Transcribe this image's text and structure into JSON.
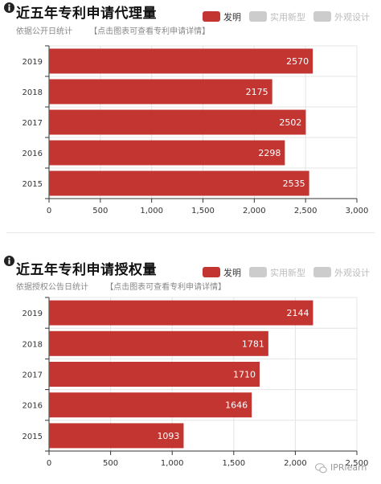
{
  "colors": {
    "bar": "#c23531",
    "legend_inactive": "#cccccc",
    "grid": "#e4e4e4",
    "axis": "#333333"
  },
  "watermark": {
    "text": "IPRlearn",
    "icon": "wechat-icon"
  },
  "charts": [
    {
      "title": "近五年专利申请代理量",
      "subtitle": "依据公开日统计",
      "hint": "【点击图表可查看专利申请详情】",
      "legend": [
        "发明",
        "实用新型",
        "外观设计"
      ]
    },
    {
      "title": "近五年专利申请授权量",
      "subtitle": "依据授权公告日统计",
      "hint": "【点击图表可查看专利申请详情】",
      "legend": [
        "发明",
        "实用新型",
        "外观设计"
      ]
    }
  ],
  "chart_data": [
    {
      "type": "bar",
      "orientation": "horizontal",
      "title": "近五年专利申请代理量",
      "categories": [
        "2019",
        "2018",
        "2017",
        "2016",
        "2015"
      ],
      "series": [
        {
          "name": "发明",
          "values": [
            2570,
            2175,
            2502,
            2298,
            2535
          ]
        }
      ],
      "legend": [
        "发明",
        "实用新型",
        "外观设计"
      ],
      "legend_active": [
        true,
        false,
        false
      ],
      "xlim": [
        0,
        3000
      ],
      "xticks": [
        0,
        500,
        1000,
        1500,
        2000,
        2500,
        3000
      ],
      "xtick_labels": [
        "0",
        "500",
        "1,000",
        "1,500",
        "2,000",
        "2,500",
        "3,000"
      ],
      "grid": true,
      "legend_position": "top-right"
    },
    {
      "type": "bar",
      "orientation": "horizontal",
      "title": "近五年专利申请授权量",
      "categories": [
        "2019",
        "2018",
        "2017",
        "2016",
        "2015"
      ],
      "series": [
        {
          "name": "发明",
          "values": [
            2144,
            1781,
            1710,
            1646,
            1093
          ]
        }
      ],
      "legend": [
        "发明",
        "实用新型",
        "外观设计"
      ],
      "legend_active": [
        true,
        false,
        false
      ],
      "xlim": [
        0,
        2500
      ],
      "xticks": [
        0,
        500,
        1000,
        1500,
        2000,
        2500
      ],
      "xtick_labels": [
        "0",
        "500",
        "1,000",
        "1,500",
        "2,000",
        "2,500"
      ],
      "grid": true,
      "legend_position": "top-right"
    }
  ]
}
